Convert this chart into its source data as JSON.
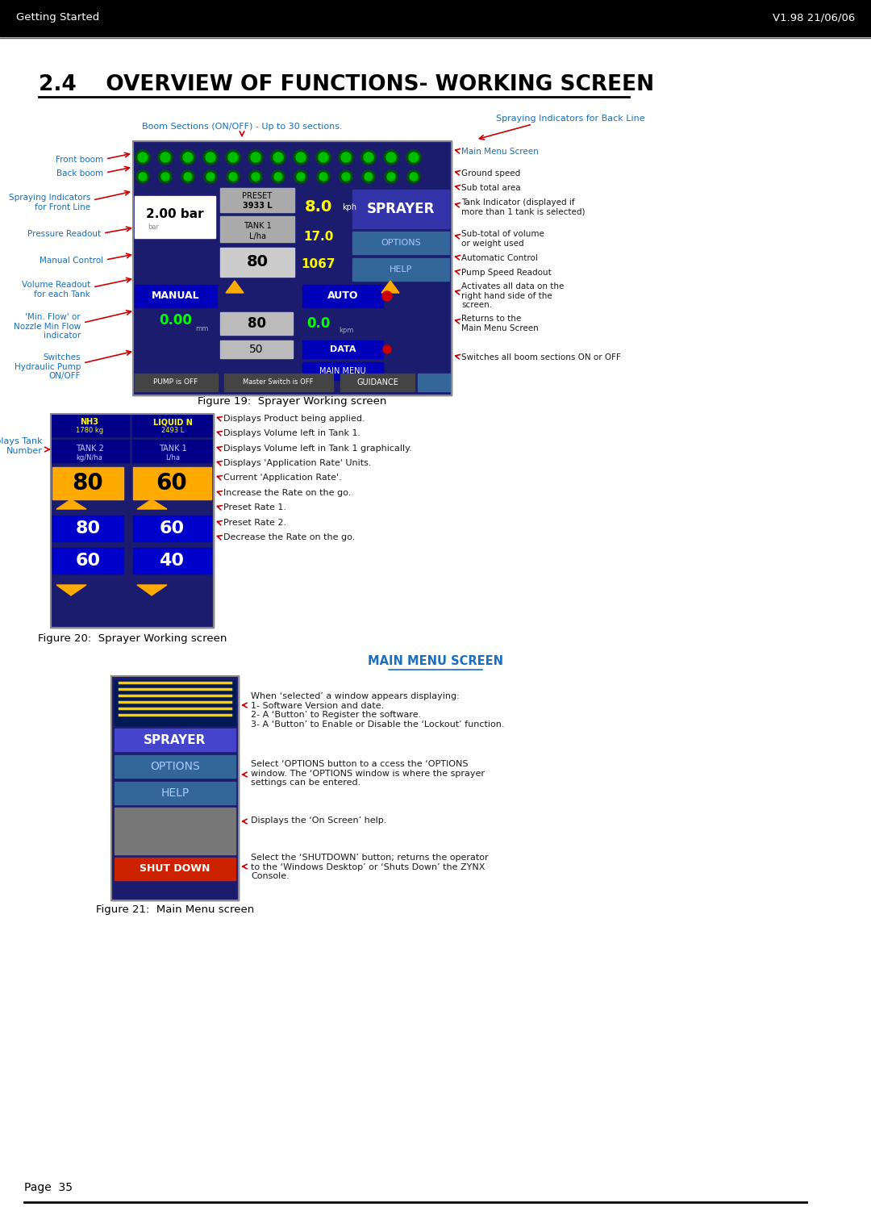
{
  "header_left": "Getting Started",
  "header_right": "V1.98 21/06/06",
  "header_bg": "#000000",
  "header_text_color": "#ffffff",
  "title": "2.4    OVERVIEW OF FUNCTIONS- WORKING SCREEN",
  "title_color": "#000000",
  "page_bg": "#ffffff",
  "blue_label_color": "#1a6ebd",
  "black_label_color": "#1a1a1a",
  "red_arrow_color": "#cc0000",
  "footer_text": "Page  35",
  "fig1_caption": "Figure 19:  Sprayer Working screen",
  "fig2_caption": "Figure 20:  Sprayer Working screen",
  "fig3_caption": "Figure 21:  Main Menu screen",
  "main_menu_title": "MAIN MENU SCREEN",
  "section3_text": "When ‘selected’ a window appears displaying:\n1- Software Version and date.\n2- A ‘Button’ to Register the software.\n3- A ‘Button’ to Enable or Disable the ‘Lockout’ function.",
  "section3_options_text": "Select ‘OPTIONS button to a ccess the ‘OPTIONS\nwindow. The ‘OPTIONS window is where the sprayer\nsettings can be entered.",
  "section3_help_text": "Displays the ‘On Screen’ help.",
  "section3_shutdown_text": "Select the ‘SHUTDOWN’ button; returns the operator\nto the ‘Windows Desktop’ or ‘Shuts Down’ the ZYNX\nConsole.",
  "fig1_labels_top_left": "Boom Sections (ON/OFF) - Up to 30 sections.",
  "fig1_labels_top_right": "Spraying Indicators for Back Line",
  "fig1_right_label_main_menu": "Main Menu Screen",
  "fig1_right_labels": [
    "Ground speed",
    "Sub total area",
    "Tank Indicator (displayed if\nmore than 1 tank is selected)",
    "Sub-total of volume\nor weight used",
    "Automatic Control",
    "Pump Speed Readout",
    "Activates all data on the\nright hand side of the\nscreen.",
    "Returns to the\nMain Menu Screen",
    "Switches all boom sections ON or OFF"
  ],
  "fig1_left_labels": [
    "Front boom",
    "Back boom",
    "Spraying Indicators\nfor Front Line",
    "Pressure Readout",
    "Manual Control",
    "Volume Readout\nfor each Tank",
    "'Min. Flow' or\nNozzle Min Flow\nindicator",
    "Switches\nHydraulic Pump\nON/OFF"
  ],
  "fig2_left_label": "Displays Tank\nNumber",
  "fig2_right_labels": [
    "Displays Product being applied.",
    "Displays Volume left in Tank 1.",
    "Displays Volume left in Tank 1 graphically.",
    "Displays 'Application Rate' Units.",
    "Current 'Application Rate'.",
    "Increase the Rate on the go.",
    "Preset Rate 1.",
    "Preset Rate 2.",
    "Decrease the Rate on the go."
  ]
}
